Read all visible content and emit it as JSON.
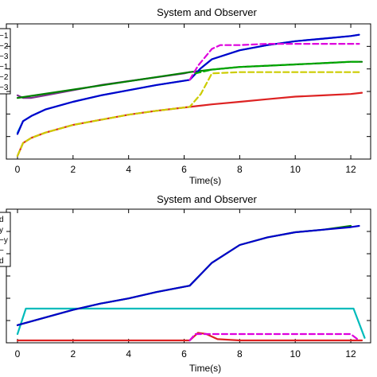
{
  "chart_data": [
    {
      "type": "line",
      "title": "System and Observer",
      "xlabel": "Time(s)",
      "ylabel": "",
      "xlim": [
        0,
        12.6
      ],
      "ylim": [
        0,
        1
      ],
      "grid": false,
      "legend_position": "top-left",
      "legend_entries": [
        "−1",
        "−2",
        "−3",
        "−1",
        "−2",
        "−3"
      ],
      "x_ticks": [
        0,
        2,
        4,
        6,
        8,
        10,
        12
      ],
      "series": [
        {
          "color": "#7e2f8e",
          "dashed": false,
          "x": [
            0,
            0.2,
            0.5,
            1,
            2,
            3,
            4,
            5,
            6,
            6.2
          ],
          "y": [
            0.47,
            0.45,
            0.45,
            0.47,
            0.51,
            0.55,
            0.58,
            0.61,
            0.64,
            0.65
          ]
        },
        {
          "color": "#008000",
          "dashed": false,
          "x": [
            0,
            6.2,
            7,
            8,
            9,
            10,
            11,
            12,
            12.4
          ],
          "y": [
            0.45,
            0.65,
            0.67,
            0.69,
            0.7,
            0.71,
            0.72,
            0.73,
            0.73
          ]
        },
        {
          "color": "#00aadd",
          "dashed": false,
          "x": [
            0,
            0.2,
            0.5,
            1,
            2,
            3,
            4,
            5,
            6.2,
            6.6,
            7,
            8,
            9,
            10,
            11,
            12,
            12.3
          ],
          "y": [
            0.18,
            0.27,
            0.31,
            0.36,
            0.42,
            0.47,
            0.51,
            0.55,
            0.59,
            0.68,
            0.75,
            0.82,
            0.86,
            0.89,
            0.91,
            0.93,
            0.94
          ]
        },
        {
          "color": "#0000cc",
          "dashed": false,
          "x": [
            0,
            0.2,
            0.5,
            1,
            2,
            3,
            4,
            5,
            6.2,
            6.6,
            7,
            8,
            9,
            10,
            11,
            12,
            12.3
          ],
          "y": [
            0.17,
            0.27,
            0.31,
            0.36,
            0.42,
            0.47,
            0.51,
            0.55,
            0.59,
            0.68,
            0.75,
            0.82,
            0.86,
            0.89,
            0.91,
            0.93,
            0.94
          ]
        },
        {
          "color": "#dd00dd",
          "dashed": true,
          "x": [
            6.2,
            6.5,
            7,
            7.3,
            8,
            9,
            10,
            11,
            12,
            12.3
          ],
          "y": [
            0.59,
            0.7,
            0.83,
            0.86,
            0.86,
            0.87,
            0.87,
            0.87,
            0.87,
            0.87
          ]
        },
        {
          "color": "#dd2222",
          "dashed": false,
          "x": [
            0,
            0.2,
            0.5,
            1,
            2,
            3,
            4,
            5,
            6.2,
            7,
            8,
            9,
            10,
            11,
            12,
            12.4
          ],
          "y": [
            0.0,
            0.1,
            0.14,
            0.18,
            0.24,
            0.28,
            0.32,
            0.35,
            0.38,
            0.4,
            0.42,
            0.44,
            0.46,
            0.47,
            0.48,
            0.49
          ]
        },
        {
          "color": "#cccc00",
          "dashed": true,
          "x": [
            0,
            0.2,
            0.5,
            1,
            2,
            3,
            4,
            5,
            6.2,
            6.6,
            7,
            8,
            9,
            10,
            11,
            12,
            12.3
          ],
          "y": [
            0.0,
            0.1,
            0.14,
            0.18,
            0.24,
            0.28,
            0.32,
            0.35,
            0.38,
            0.48,
            0.64,
            0.65,
            0.65,
            0.65,
            0.65,
            0.65,
            0.65
          ]
        },
        {
          "color": "#00aa00",
          "dashed": true,
          "x": [
            6.4,
            7,
            8,
            9,
            10,
            11,
            12,
            12.3
          ],
          "y": [
            0.64,
            0.67,
            0.69,
            0.7,
            0.71,
            0.72,
            0.73,
            0.73
          ]
        }
      ]
    },
    {
      "type": "line",
      "title": "System and Observer",
      "xlabel": "Time(s)",
      "ylabel": "",
      "xlim": [
        0,
        12.6
      ],
      "ylim": [
        0,
        1
      ],
      "grid": false,
      "legend_position": "top-left",
      "legend_entries": [
        "d",
        "y",
        "−y",
        "−",
        "d"
      ],
      "x_ticks": [
        0,
        2,
        4,
        6,
        8,
        10,
        12
      ],
      "series": [
        {
          "color": "#00bbbb",
          "dashed": false,
          "x": [
            0,
            0.3,
            12.1,
            12.5
          ],
          "y": [
            0.05,
            0.25,
            0.25,
            0.02
          ]
        },
        {
          "color": "#008000",
          "dashed": false,
          "x": [
            0,
            1,
            2,
            3,
            4,
            5,
            6.2,
            7,
            8,
            9,
            10,
            11,
            12
          ],
          "y": [
            0.12,
            0.18,
            0.24,
            0.29,
            0.33,
            0.38,
            0.43,
            0.61,
            0.75,
            0.81,
            0.85,
            0.87,
            0.9
          ]
        },
        {
          "color": "#0000cc",
          "dashed": false,
          "x": [
            0,
            1,
            2,
            3,
            4,
            5,
            6.2,
            7,
            8,
            9,
            10,
            11,
            12,
            12.3
          ],
          "y": [
            0.12,
            0.18,
            0.24,
            0.29,
            0.33,
            0.38,
            0.43,
            0.61,
            0.75,
            0.81,
            0.85,
            0.87,
            0.89,
            0.9
          ]
        },
        {
          "color": "#dd2222",
          "dashed": false,
          "x": [
            0,
            6.2,
            6.5,
            6.8,
            7.2,
            8,
            10,
            12,
            12.4
          ],
          "y": [
            0.0,
            0.0,
            0.06,
            0.05,
            0.01,
            0.0,
            0.0,
            0.0,
            0.0
          ]
        },
        {
          "color": "#dd00dd",
          "dashed": true,
          "x": [
            6.2,
            6.4,
            12.0,
            12.3
          ],
          "y": [
            0.0,
            0.05,
            0.05,
            0.0
          ]
        }
      ]
    }
  ]
}
